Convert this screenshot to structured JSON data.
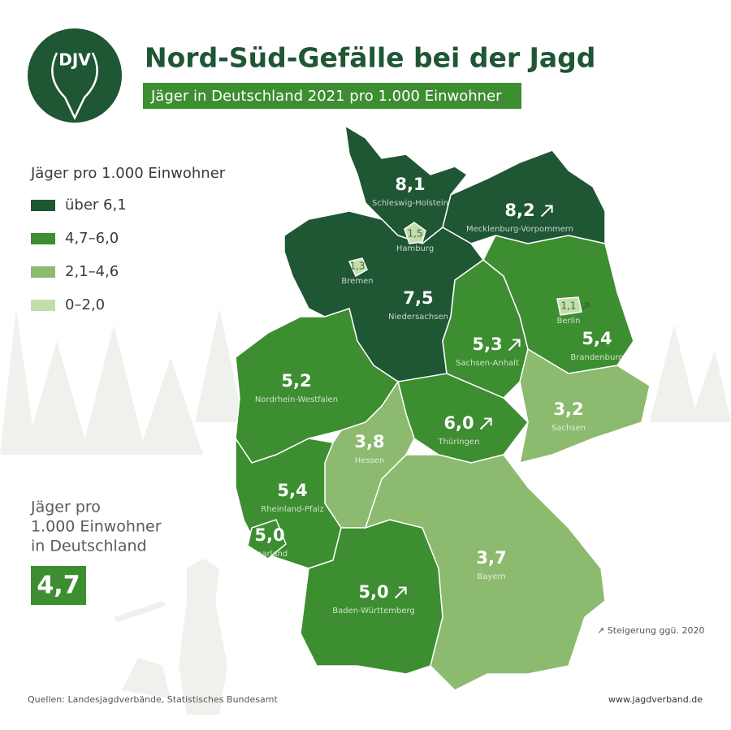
{
  "header": {
    "logo": "DJV",
    "title": "Nord-Süd-Gefälle bei der Jagd",
    "subtitle": "Jäger in Deutschland 2021 pro 1.000 Einwohner"
  },
  "legend": {
    "title": "Jäger pro 1.000 Einwohner",
    "items": [
      {
        "label": "über 6,1",
        "color": "#1f5634"
      },
      {
        "label": "4,7–6,0",
        "color": "#3d8d31"
      },
      {
        "label": "2,1–4,6",
        "color": "#8cba6e"
      },
      {
        "label": "0–2,0",
        "color": "#c3deaa"
      }
    ]
  },
  "states": [
    {
      "name": "Schleswig-Holstein",
      "value": "8,1",
      "category": 0,
      "increase": false
    },
    {
      "name": "Hamburg",
      "value": "1,5",
      "category": 3,
      "increase": false
    },
    {
      "name": "Mecklenburg-Vorpommern",
      "value": "8,2",
      "category": 0,
      "increase": true
    },
    {
      "name": "Bremen",
      "value": "1,3",
      "category": 3,
      "increase": false
    },
    {
      "name": "Niedersachsen",
      "value": "7,5",
      "category": 0,
      "increase": false
    },
    {
      "name": "Berlin",
      "value": "1,1",
      "category": 3,
      "increase": true
    },
    {
      "name": "Sachsen-Anhalt",
      "value": "5,3",
      "category": 1,
      "increase": true
    },
    {
      "name": "Brandenburg",
      "value": "5,4",
      "category": 1,
      "increase": false
    },
    {
      "name": "Nordrhein-Westfalen",
      "value": "5,2",
      "category": 1,
      "increase": false
    },
    {
      "name": "Sachsen",
      "value": "3,2",
      "category": 2,
      "increase": false
    },
    {
      "name": "Thüringen",
      "value": "6,0",
      "category": 1,
      "increase": true
    },
    {
      "name": "Hessen",
      "value": "3,8",
      "category": 2,
      "increase": false
    },
    {
      "name": "Rheinland-Pfalz",
      "value": "5,4",
      "category": 1,
      "increase": false
    },
    {
      "name": "Saarland",
      "value": "5,0",
      "category": 1,
      "increase": false
    },
    {
      "name": "Baden-Württemberg",
      "value": "5,0",
      "category": 1,
      "increase": true
    },
    {
      "name": "Bayern",
      "value": "3,7",
      "category": 2,
      "increase": false
    }
  ],
  "national": {
    "lines": [
      "Jäger pro",
      "1.000 Einwohner",
      "in Deutschland"
    ],
    "value": "4,7"
  },
  "footnote": "↗ Steigerung ggü. 2020",
  "sources": "Quellen: Landesjagdverbände, Statistisches Bundesamt",
  "website": "www.jagdverband.de"
}
